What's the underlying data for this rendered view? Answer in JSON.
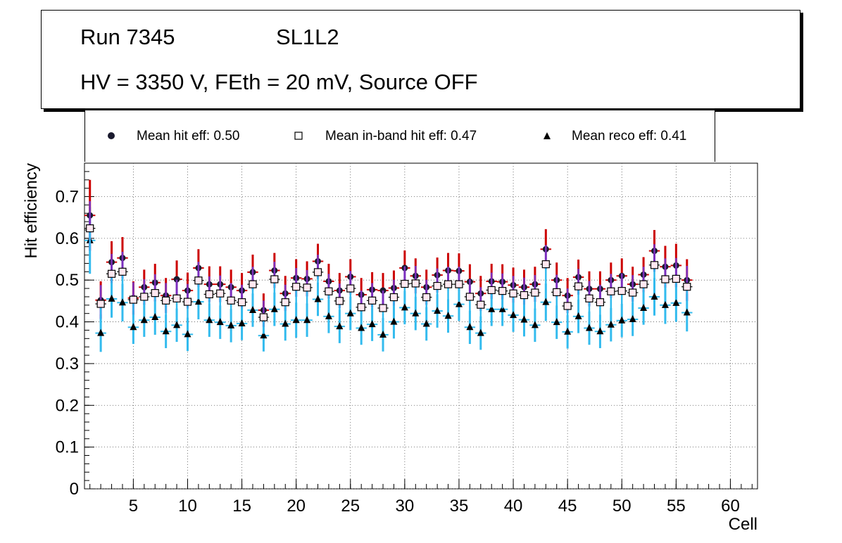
{
  "header": {
    "run": "Run 7345",
    "layer": "SL1L2",
    "conditions": "HV = 3350 V, FEth = 20 mV, Source OFF"
  },
  "legend": {
    "hit": "Mean hit  eff: 0.50",
    "inband": "Mean in-band hit eff: 0.47",
    "reco": "Mean reco eff: 0.41"
  },
  "colors": {
    "hit_marker": "#1a1a2e",
    "hit_err": "#cc0000",
    "inband_err_up": "#7b2fbe",
    "inband_marker_fill": "#ffe8f0",
    "reco_err": "#33bbee",
    "reco_marker": "#000000"
  },
  "chart_data": {
    "type": "scatter",
    "title": "",
    "xlabel": "Cell",
    "ylabel": "Hit efficiency",
    "xlim": [
      0.5,
      62.5
    ],
    "ylim": [
      0,
      0.78
    ],
    "xticks": [
      5,
      10,
      15,
      20,
      25,
      30,
      35,
      40,
      45,
      50,
      55,
      60
    ],
    "yticks": [
      0,
      0.1,
      0.2,
      0.3,
      0.4,
      0.5,
      0.6,
      0.7
    ],
    "ytick_labels": [
      "0",
      "0.1",
      "0.2",
      "0.3",
      "0.4",
      "0.5",
      "0.6",
      "0.7"
    ],
    "grid": true,
    "x": [
      1,
      2,
      3,
      4,
      5,
      6,
      7,
      8,
      9,
      10,
      11,
      12,
      13,
      14,
      15,
      16,
      17,
      18,
      19,
      20,
      21,
      22,
      23,
      24,
      25,
      26,
      27,
      28,
      29,
      30,
      31,
      32,
      33,
      34,
      35,
      36,
      37,
      38,
      39,
      40,
      41,
      42,
      43,
      44,
      45,
      46,
      47,
      48,
      49,
      50,
      51,
      52,
      53,
      54,
      55,
      56
    ],
    "series": [
      {
        "name": "Mean hit  eff",
        "marker": "circle",
        "values": [
          0.655,
          0.452,
          0.543,
          0.553,
          0.457,
          0.483,
          0.494,
          0.463,
          0.502,
          0.475,
          0.529,
          0.49,
          0.49,
          0.483,
          0.475,
          0.519,
          0.428,
          0.523,
          0.468,
          0.505,
          0.503,
          0.545,
          0.497,
          0.475,
          0.508,
          0.465,
          0.477,
          0.475,
          0.481,
          0.529,
          0.51,
          0.483,
          0.512,
          0.523,
          0.522,
          0.496,
          0.468,
          0.497,
          0.496,
          0.488,
          0.483,
          0.49,
          0.574,
          0.5,
          0.463,
          0.507,
          0.479,
          0.479,
          0.5,
          0.51,
          0.49,
          0.513,
          0.57,
          0.532,
          0.535,
          0.5
        ],
        "err": [
          0.085,
          0.045,
          0.05,
          0.05,
          0.04,
          0.042,
          0.045,
          0.042,
          0.045,
          0.043,
          0.045,
          0.043,
          0.043,
          0.042,
          0.042,
          0.042,
          0.04,
          0.042,
          0.042,
          0.045,
          0.042,
          0.042,
          0.042,
          0.042,
          0.042,
          0.04,
          0.042,
          0.042,
          0.042,
          0.042,
          0.042,
          0.042,
          0.042,
          0.042,
          0.042,
          0.042,
          0.042,
          0.042,
          0.042,
          0.042,
          0.042,
          0.042,
          0.048,
          0.042,
          0.042,
          0.042,
          0.042,
          0.042,
          0.042,
          0.042,
          0.042,
          0.042,
          0.05,
          0.05,
          0.052,
          0.05
        ]
      },
      {
        "name": "Mean in-band hit eff",
        "marker": "open-square",
        "values": [
          0.624,
          0.443,
          0.515,
          0.52,
          0.453,
          0.46,
          0.469,
          0.451,
          0.456,
          0.448,
          0.499,
          0.466,
          0.468,
          0.451,
          0.447,
          0.49,
          0.411,
          0.502,
          0.447,
          0.484,
          0.482,
          0.519,
          0.473,
          0.45,
          0.48,
          0.435,
          0.451,
          0.433,
          0.459,
          0.491,
          0.492,
          0.459,
          0.486,
          0.49,
          0.49,
          0.46,
          0.441,
          0.476,
          0.474,
          0.468,
          0.464,
          0.47,
          0.538,
          0.471,
          0.438,
          0.485,
          0.456,
          0.447,
          0.473,
          0.474,
          0.47,
          0.49,
          0.536,
          0.502,
          0.503,
          0.484
        ],
        "err": [
          0.065,
          0.045,
          0.048,
          0.048,
          0.042,
          0.042,
          0.045,
          0.042,
          0.045,
          0.043,
          0.045,
          0.043,
          0.043,
          0.042,
          0.042,
          0.042,
          0.04,
          0.042,
          0.042,
          0.045,
          0.042,
          0.042,
          0.042,
          0.042,
          0.042,
          0.04,
          0.042,
          0.042,
          0.042,
          0.042,
          0.042,
          0.042,
          0.042,
          0.042,
          0.042,
          0.042,
          0.042,
          0.042,
          0.042,
          0.042,
          0.042,
          0.042,
          0.046,
          0.042,
          0.042,
          0.042,
          0.042,
          0.042,
          0.042,
          0.042,
          0.042,
          0.042,
          0.05,
          0.05,
          0.05,
          0.05
        ]
      },
      {
        "name": "Mean reco eff",
        "marker": "triangle",
        "values": [
          0.595,
          0.373,
          0.455,
          0.446,
          0.387,
          0.404,
          0.411,
          0.377,
          0.392,
          0.37,
          0.448,
          0.404,
          0.399,
          0.391,
          0.396,
          0.428,
          0.367,
          0.43,
          0.395,
          0.404,
          0.404,
          0.454,
          0.413,
          0.389,
          0.42,
          0.385,
          0.394,
          0.369,
          0.4,
          0.434,
          0.42,
          0.395,
          0.426,
          0.414,
          0.442,
          0.387,
          0.373,
          0.43,
          0.43,
          0.416,
          0.405,
          0.392,
          0.447,
          0.399,
          0.376,
          0.413,
          0.385,
          0.377,
          0.393,
          0.403,
          0.406,
          0.433,
          0.46,
          0.44,
          0.445,
          0.422
        ],
        "err": [
          0.08,
          0.045,
          0.045,
          0.045,
          0.04,
          0.04,
          0.042,
          0.04,
          0.04,
          0.04,
          0.042,
          0.04,
          0.04,
          0.04,
          0.04,
          0.04,
          0.038,
          0.04,
          0.04,
          0.042,
          0.04,
          0.04,
          0.04,
          0.04,
          0.04,
          0.04,
          0.04,
          0.04,
          0.04,
          0.04,
          0.04,
          0.04,
          0.04,
          0.04,
          0.04,
          0.04,
          0.04,
          0.04,
          0.04,
          0.04,
          0.04,
          0.04,
          0.045,
          0.04,
          0.04,
          0.04,
          0.04,
          0.04,
          0.04,
          0.04,
          0.04,
          0.04,
          0.045,
          0.045,
          0.045,
          0.045
        ]
      }
    ]
  }
}
